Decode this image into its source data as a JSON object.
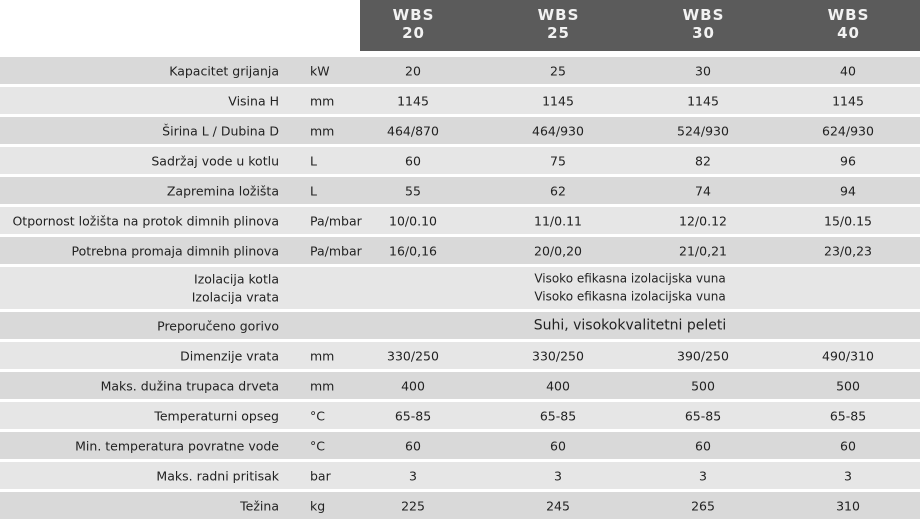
{
  "header": {
    "columns": [
      {
        "model": "WBS",
        "size": "20"
      },
      {
        "model": "WBS",
        "size": "25"
      },
      {
        "model": "WBS",
        "size": "30"
      },
      {
        "model": "WBS",
        "size": "40"
      }
    ]
  },
  "table": {
    "rows": [
      {
        "label": "Kapacitet grijanja",
        "unit": "kW",
        "values": [
          "20",
          "25",
          "30",
          "40"
        ]
      },
      {
        "label": "Visina H",
        "unit": "mm",
        "values": [
          "1145",
          "1145",
          "1145",
          "1145"
        ]
      },
      {
        "label": "Širina L / Dubina D",
        "unit": "mm",
        "values": [
          "464/870",
          "464/930",
          "524/930",
          "624/930"
        ]
      },
      {
        "label": "Sadržaj vode u kotlu",
        "unit": "L",
        "values": [
          "60",
          "75",
          "82",
          "96"
        ]
      },
      {
        "label": "Zapremina ložišta",
        "unit": "L",
        "values": [
          "55",
          "62",
          "74",
          "94"
        ]
      },
      {
        "label": "Otpornost ložišta na protok dimnih plinova",
        "unit": "Pa/mbar",
        "values": [
          "10/0.10",
          "11/0.11",
          "12/0.12",
          "15/0.15"
        ]
      },
      {
        "label": "Potrebna promaja dimnih plinova",
        "unit": "Pa/mbar",
        "values": [
          "16/0,16",
          "20/0,20",
          "21/0,21",
          "23/0,23"
        ]
      },
      {
        "lines": [
          {
            "label": "Izolacija kotla",
            "value": "Visoko efikasna izolacijska vuna"
          },
          {
            "label": "Izolacija vrata",
            "value": "Visoko efikasna izolacijska vuna"
          }
        ]
      },
      {
        "label": "Preporučeno gorivo",
        "value": "Suhi, visokokvalitetni peleti"
      },
      {
        "label": "Dimenzije vrata",
        "unit": "mm",
        "values": [
          "330/250",
          "330/250",
          "390/250",
          "490/310"
        ]
      },
      {
        "label": "Maks. dužina trupaca drveta",
        "unit": "mm",
        "values": [
          "400",
          "400",
          "500",
          "500"
        ]
      },
      {
        "label": "Temperaturni opseg",
        "unit": "°C",
        "values": [
          "65-85",
          "65-85",
          "65-85",
          "65-85"
        ]
      },
      {
        "label": "Min. temperatura povratne vode",
        "unit": "°C",
        "values": [
          "60",
          "60",
          "60",
          "60"
        ]
      },
      {
        "label": "Maks. radni pritisak",
        "unit": "bar",
        "values": [
          "3",
          "3",
          "3",
          "3"
        ]
      },
      {
        "label": "Težina",
        "unit": "kg",
        "values": [
          "225",
          "245",
          "265",
          "310"
        ]
      }
    ]
  }
}
